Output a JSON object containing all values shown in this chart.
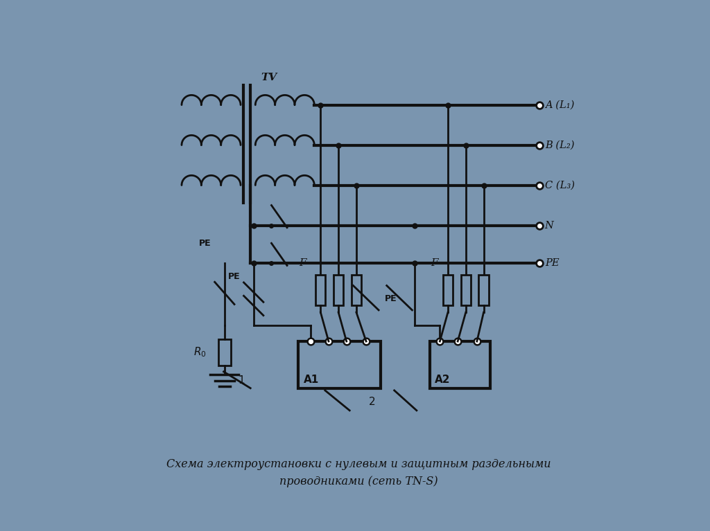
{
  "background_color": "#7a95af",
  "paper_color": "#f2f0ec",
  "line_color": "#111111",
  "caption_line1": "Схема электроустановки с нулевым и защитным раздельными",
  "caption_line2": "проводниками (сеть TN-S)",
  "bus_labels": [
    "A (L₁)",
    "B (L₂)",
    "C (L₃)",
    "N",
    "PE"
  ],
  "lw": 2.0,
  "tlw": 3.0
}
